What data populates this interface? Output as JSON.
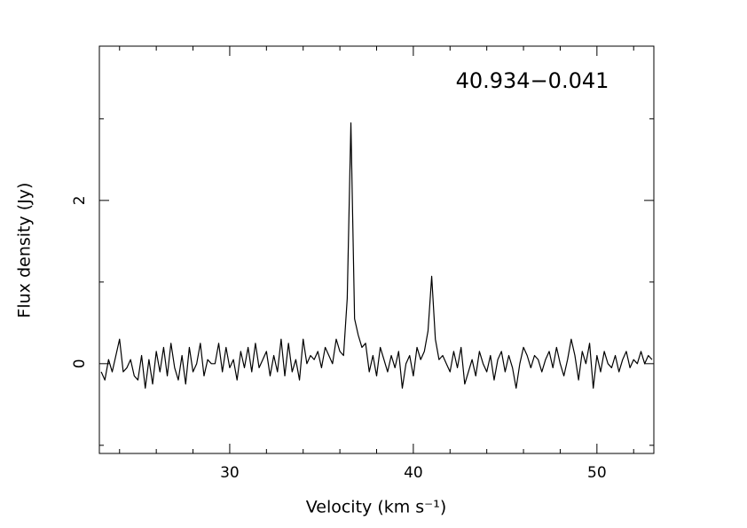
{
  "chart_data": {
    "type": "line",
    "xlabel": "Velocity (km s⁻¹)",
    "ylabel": "Flux density (Jy)",
    "annotation": "40.934−0.041",
    "color": "#000000",
    "xlim": [
      22.9,
      53.1
    ],
    "ylim": [
      -1.1,
      3.89
    ],
    "xticks": [
      30,
      40,
      50
    ],
    "xminorticks": [
      24,
      26,
      28,
      32,
      34,
      36,
      38,
      42,
      44,
      46,
      48,
      52
    ],
    "yticks": [
      0,
      2
    ],
    "yminorticks": [
      -1,
      1,
      3
    ],
    "x": [
      23.0,
      23.2,
      23.4,
      23.6,
      23.8,
      24.0,
      24.2,
      24.4,
      24.6,
      24.8,
      25.0,
      25.2,
      25.4,
      25.6,
      25.8,
      26.0,
      26.2,
      26.4,
      26.6,
      26.8,
      27.0,
      27.2,
      27.4,
      27.6,
      27.8,
      28.0,
      28.2,
      28.4,
      28.6,
      28.8,
      29.0,
      29.2,
      29.4,
      29.6,
      29.8,
      30.0,
      30.2,
      30.4,
      30.6,
      30.8,
      31.0,
      31.2,
      31.4,
      31.6,
      31.8,
      32.0,
      32.2,
      32.4,
      32.6,
      32.8,
      33.0,
      33.2,
      33.4,
      33.6,
      33.8,
      34.0,
      34.2,
      34.4,
      34.6,
      34.8,
      35.0,
      35.2,
      35.4,
      35.6,
      35.8,
      36.0,
      36.2,
      36.4,
      36.6,
      36.8,
      37.0,
      37.2,
      37.4,
      37.6,
      37.8,
      38.0,
      38.2,
      38.4,
      38.6,
      38.8,
      39.0,
      39.2,
      39.4,
      39.6,
      39.8,
      40.0,
      40.2,
      40.4,
      40.6,
      40.8,
      41.0,
      41.2,
      41.4,
      41.6,
      41.8,
      42.0,
      42.2,
      42.4,
      42.6,
      42.8,
      43.0,
      43.2,
      43.4,
      43.6,
      43.8,
      44.0,
      44.2,
      44.4,
      44.6,
      44.8,
      45.0,
      45.2,
      45.4,
      45.6,
      45.8,
      46.0,
      46.2,
      46.4,
      46.6,
      46.8,
      47.0,
      47.2,
      47.4,
      47.6,
      47.8,
      48.0,
      48.2,
      48.4,
      48.6,
      48.8,
      49.0,
      49.2,
      49.4,
      49.6,
      49.8,
      50.0,
      50.2,
      50.4,
      50.6,
      50.8,
      51.0,
      51.2,
      51.4,
      51.6,
      51.8,
      52.0,
      52.2,
      52.4,
      52.6,
      52.8,
      53.0
    ],
    "values": [
      -0.1,
      -0.2,
      0.05,
      -0.1,
      0.1,
      0.3,
      -0.1,
      -0.05,
      0.05,
      -0.15,
      -0.2,
      0.1,
      -0.3,
      0.05,
      -0.25,
      0.15,
      -0.1,
      0.2,
      -0.15,
      0.25,
      -0.05,
      -0.2,
      0.1,
      -0.25,
      0.2,
      -0.1,
      0.0,
      0.25,
      -0.15,
      0.05,
      0.0,
      0.0,
      0.25,
      -0.1,
      0.2,
      -0.05,
      0.05,
      -0.2,
      0.15,
      -0.05,
      0.2,
      -0.1,
      0.25,
      -0.05,
      0.05,
      0.15,
      -0.15,
      0.1,
      -0.1,
      0.3,
      -0.15,
      0.25,
      -0.1,
      0.05,
      -0.2,
      0.3,
      0.0,
      0.1,
      0.05,
      0.15,
      -0.05,
      0.2,
      0.1,
      0.0,
      0.3,
      0.15,
      0.1,
      0.8,
      2.95,
      0.55,
      0.35,
      0.2,
      0.25,
      -0.1,
      0.1,
      -0.15,
      0.2,
      0.05,
      -0.1,
      0.1,
      -0.05,
      0.15,
      -0.3,
      0.0,
      0.1,
      -0.15,
      0.2,
      0.05,
      0.15,
      0.4,
      1.07,
      0.3,
      0.05,
      0.1,
      0.0,
      -0.1,
      0.15,
      -0.05,
      0.2,
      -0.25,
      -0.1,
      0.05,
      -0.15,
      0.15,
      0.0,
      -0.1,
      0.1,
      -0.2,
      0.05,
      0.15,
      -0.1,
      0.1,
      -0.05,
      -0.3,
      0.0,
      0.2,
      0.1,
      -0.05,
      0.1,
      0.05,
      -0.1,
      0.05,
      0.15,
      -0.05,
      0.2,
      0.0,
      -0.15,
      0.05,
      0.3,
      0.1,
      -0.2,
      0.15,
      0.0,
      0.25,
      -0.3,
      0.1,
      -0.1,
      0.15,
      0.0,
      -0.05,
      0.1,
      -0.1,
      0.05,
      0.15,
      -0.05,
      0.05,
      0.0,
      0.15,
      0.0,
      0.1,
      0.05
    ]
  }
}
